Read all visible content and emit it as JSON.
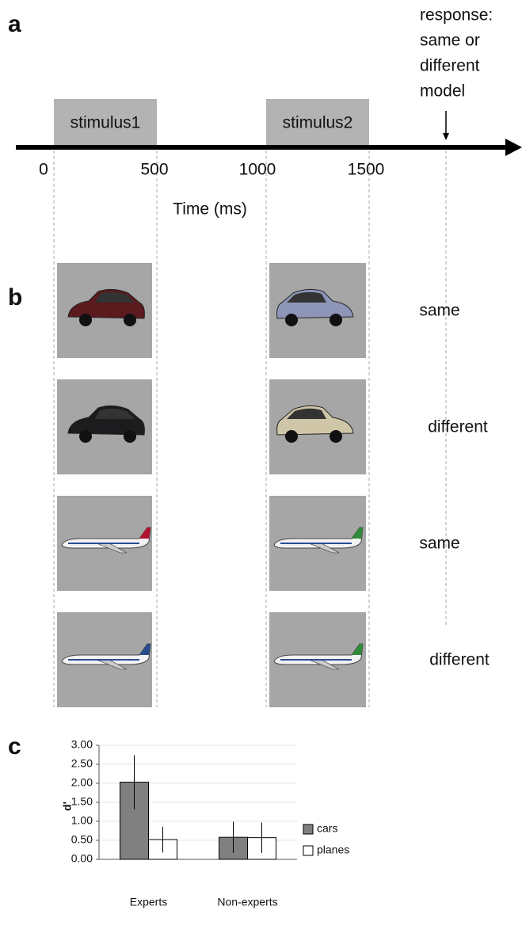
{
  "panel_labels": [
    "a",
    "b",
    "c"
  ],
  "timeline": {
    "stimuli": [
      "stimulus1",
      "stimulus2"
    ],
    "ticks": [
      0,
      500,
      1000,
      1500
    ],
    "axis_label": "Time (ms)",
    "response_label": [
      "response:",
      "same or",
      "different",
      "model"
    ]
  },
  "trials": [
    "same",
    "different",
    "same",
    "different"
  ],
  "chart_data": {
    "type": "bar",
    "ylabel": "d'",
    "categories": [
      "Experts",
      "Non-experts"
    ],
    "series": [
      {
        "name": "cars",
        "color": "#808080",
        "values": [
          2.03,
          0.58
        ],
        "errors": [
          0.71,
          0.41
        ]
      },
      {
        "name": "planes",
        "color": "#ffffff",
        "values": [
          0.52,
          0.57
        ],
        "errors": [
          0.34,
          0.4
        ]
      }
    ],
    "ylim": [
      0,
      3
    ],
    "yticks": [
      {
        "value": 0,
        "label": "0.00"
      },
      {
        "value": 0.5,
        "label": "0.50"
      },
      {
        "value": 1,
        "label": "1.00"
      },
      {
        "value": 1.5,
        "label": "1.50"
      },
      {
        "value": 2,
        "label": "2.00"
      },
      {
        "value": 2.5,
        "label": "2.50"
      },
      {
        "value": 3,
        "label": "3.00"
      }
    ],
    "grid": true,
    "legend": "right"
  }
}
